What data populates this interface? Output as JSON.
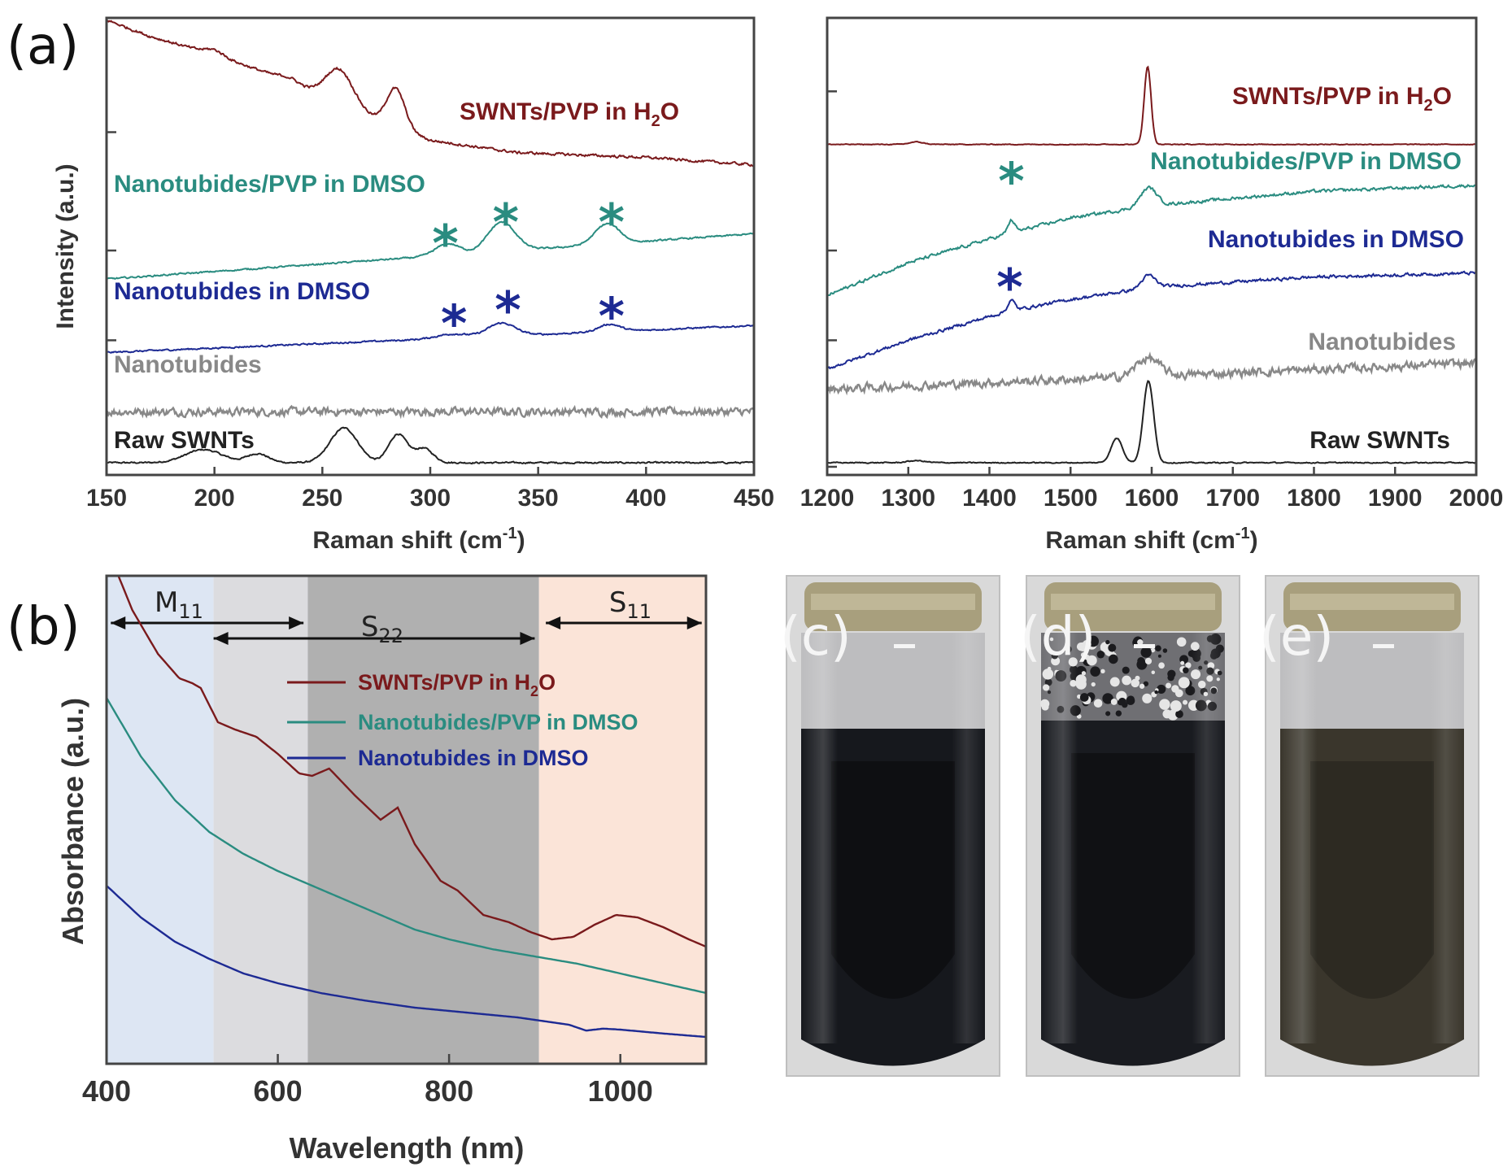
{
  "panel_labels": {
    "a": "(a)",
    "b": "(b)"
  },
  "series_colors": {
    "raw": "#222222",
    "nanotubides": "#888888",
    "nano_dmso": "#1d2a93",
    "nano_pvp_dmso": "#2a8c80",
    "swnt_pvp_h2o": "#7a1a1c"
  },
  "chart_data": [
    {
      "id": "raman_low",
      "type": "line",
      "xlabel": "Raman shift (cm",
      "xlabel_sup": "-1",
      "xlabel_end": ")",
      "ylabel": "Intensity (a.u.)",
      "xlim": [
        150,
        450
      ],
      "ylim": [
        0,
        11.2
      ],
      "xticks": [
        "150",
        "200",
        "250",
        "300",
        "350",
        "400",
        "450"
      ],
      "xtick_values": [
        150,
        200,
        250,
        300,
        350,
        400,
        450
      ],
      "ytick_values": [
        0,
        3.3,
        5.5,
        8.4
      ],
      "series": [
        {
          "key": "raw",
          "name": "Raw SWNTs",
          "offset": 0.3,
          "noise": 0.03,
          "peaks": [
            [
              195,
              12,
              0.32
            ],
            [
              220,
              7,
              0.22
            ],
            [
              260,
              9,
              0.85
            ],
            [
              285,
              6,
              0.7
            ],
            [
              297,
              6,
              0.35
            ]
          ],
          "slope": 0,
          "curve": [],
          "stars": []
        },
        {
          "key": "nanotubides",
          "name": "Nanotubides",
          "offset": 1.55,
          "noise": 0.15,
          "peaks": [],
          "slope": 0,
          "curve": [],
          "stars": []
        },
        {
          "key": "nano_dmso",
          "name": "Nanotubides  in DMSO",
          "offset": 3.0,
          "noise": 0.03,
          "peaks": [
            [
              310,
              10,
              0.1
            ],
            [
              333,
              9,
              0.32
            ],
            [
              383,
              7,
              0.18
            ]
          ],
          "slope": 0.0022,
          "curve": [],
          "stars": [
            {
              "x": 311,
              "y": 3.72,
              "text": "*"
            },
            {
              "x": 336,
              "y": 4.05,
              "text": "*"
            },
            {
              "x": 384,
              "y": 3.9,
              "text": "*"
            }
          ]
        },
        {
          "key": "nano_pvp_dmso",
          "name": "Nanotubides/PVP  in DMSO",
          "offset": 4.8,
          "noise": 0.03,
          "peaks": [
            [
              308,
              8,
              0.28
            ],
            [
              333,
              9,
              0.72
            ],
            [
              382,
              8,
              0.5
            ]
          ],
          "slope": 0.0037,
          "curve": [],
          "stars": [
            {
              "x": 307,
              "y": 5.68,
              "text": "*"
            },
            {
              "x": 335,
              "y": 6.2,
              "text": "*"
            },
            {
              "x": 384,
              "y": 6.2,
              "text": "*"
            }
          ]
        },
        {
          "key": "swnt_pvp_h2o",
          "name": "SWNTs/PVP  in H",
          "name_sub": "2",
          "name_end": "O",
          "offset": 7.5,
          "noise": 0.05,
          "peaks": [
            [
              258,
              9,
              0.85
            ],
            [
              284,
              6,
              0.95
            ],
            [
              200,
              6,
              0.12
            ],
            [
              235,
              6,
              0.1
            ]
          ],
          "slope": 0,
          "curve": [
            [
              150,
              11.15
            ],
            [
              170,
              10.75
            ],
            [
              200,
              10.3
            ],
            [
              230,
              9.75
            ],
            [
              260,
              9.05
            ],
            [
              285,
              8.5
            ],
            [
              300,
              8.2
            ],
            [
              340,
              7.9
            ],
            [
              400,
              7.78
            ],
            [
              450,
              7.6
            ]
          ],
          "stars": []
        }
      ]
    },
    {
      "id": "raman_high",
      "type": "line",
      "xlabel": "Raman shift (cm",
      "xlabel_sup": "-1",
      "xlabel_end": ")",
      "xlim": [
        1200,
        2000
      ],
      "ylim": [
        0,
        11.2
      ],
      "xticks": [
        "1200",
        "1300",
        "1400",
        "1500",
        "1600",
        "1700",
        "1800",
        "1900",
        "2000"
      ],
      "xtick_values": [
        1200,
        1300,
        1400,
        1500,
        1600,
        1700,
        1800,
        1900,
        2000
      ],
      "ytick_values": [
        0.2,
        3.3,
        5.5,
        9.4
      ],
      "series": [
        {
          "key": "raw",
          "name": "Raw SWNTs",
          "offset": 0.3,
          "noise": 0.02,
          "peaks": [
            [
              1557,
              10,
              0.6
            ],
            [
              1596,
              9,
              2.0
            ],
            [
              1310,
              15,
              0.05
            ]
          ],
          "slope": 0,
          "curve": [],
          "stars": []
        },
        {
          "key": "nanotubides",
          "name": "Nanotubides",
          "offset": 2.1,
          "noise": 0.16,
          "peaks": [
            [
              1595,
              20,
              0.45
            ]
          ],
          "slope": 0.0008,
          "curve": [],
          "stars": []
        },
        {
          "key": "nano_dmso",
          "name": "Nanotubides  in DMSO",
          "offset": 2.55,
          "noise": 0.06,
          "peaks": [
            [
              1427,
              6,
              0.25
            ],
            [
              1596,
              12,
              0.3
            ]
          ],
          "slope": 0,
          "curve": [
            [
              1200,
              2.6
            ],
            [
              1300,
              3.3
            ],
            [
              1420,
              4.0
            ],
            [
              1500,
              4.3
            ],
            [
              1600,
              4.6
            ],
            [
              1800,
              4.85
            ],
            [
              2000,
              4.95
            ]
          ],
          "stars": [
            {
              "x": 1425,
              "y": 4.6,
              "text": "*"
            }
          ]
        },
        {
          "key": "nano_pvp_dmso",
          "name": "Nanotubides/PVP  in DMSO",
          "offset": 4.4,
          "noise": 0.06,
          "peaks": [
            [
              1427,
              6,
              0.3
            ],
            [
              1596,
              14,
              0.45
            ]
          ],
          "slope": 0,
          "curve": [
            [
              1200,
              4.4
            ],
            [
              1300,
              5.2
            ],
            [
              1420,
              5.9
            ],
            [
              1500,
              6.3
            ],
            [
              1600,
              6.6
            ],
            [
              1800,
              6.95
            ],
            [
              2000,
              7.1
            ]
          ],
          "stars": [
            {
              "x": 1427,
              "y": 7.2,
              "text": "*"
            }
          ]
        },
        {
          "key": "swnt_pvp_h2o",
          "name": "SWNTs/PVP  in H",
          "name_sub": "2",
          "name_end": "O",
          "offset": 8.1,
          "noise": 0.015,
          "peaks": [
            [
              1595,
              6,
              1.9
            ],
            [
              1310,
              12,
              0.06
            ]
          ],
          "slope": 0,
          "curve": [],
          "stars": []
        }
      ]
    },
    {
      "id": "absorbance",
      "type": "line",
      "xlabel": "Wavelength (nm)",
      "ylabel": "Absorbance (a.u.)",
      "xlim": [
        400,
        1100
      ],
      "ylim": [
        0,
        10
      ],
      "xticks": [
        "400",
        "600",
        "800",
        "1000"
      ],
      "xtick_values": [
        400,
        600,
        800,
        1000
      ],
      "regions": [
        {
          "name": "M",
          "sub": "11",
          "from": 400,
          "to": 525,
          "color": "#dde6f3"
        },
        {
          "name": "",
          "sub": "",
          "from": 525,
          "to": 635,
          "color": "#dcdcdf"
        },
        {
          "name": "S",
          "sub": "22",
          "from": 635,
          "to": 905,
          "color": "#b0b0b0"
        },
        {
          "name": "S",
          "sub": "11",
          "from": 905,
          "to": 1100,
          "color": "#fbe4d8"
        }
      ],
      "arrows": [
        {
          "label": "M",
          "sub": "11",
          "from": 405,
          "to": 630
        },
        {
          "label": "S",
          "sub": "22",
          "from": 525,
          "to": 900
        },
        {
          "label": "S",
          "sub": "11",
          "from": 913,
          "to": 1095
        }
      ],
      "series": [
        {
          "key": "swnt_pvp_h2o",
          "name": "SWNTs/PVP  in H",
          "name_sub": "2",
          "name_end": "O",
          "points": [
            [
              400,
              10.6
            ],
            [
              430,
              9.3
            ],
            [
              460,
              8.4
            ],
            [
              485,
              7.9
            ],
            [
              500,
              7.8
            ],
            [
              510,
              7.7
            ],
            [
              530,
              7.0
            ],
            [
              550,
              6.85
            ],
            [
              575,
              6.7
            ],
            [
              600,
              6.35
            ],
            [
              625,
              5.95
            ],
            [
              640,
              5.9
            ],
            [
              660,
              6.05
            ],
            [
              690,
              5.5
            ],
            [
              720,
              5.0
            ],
            [
              740,
              5.25
            ],
            [
              760,
              4.5
            ],
            [
              790,
              3.75
            ],
            [
              810,
              3.55
            ],
            [
              840,
              3.05
            ],
            [
              870,
              2.9
            ],
            [
              895,
              2.7
            ],
            [
              920,
              2.55
            ],
            [
              945,
              2.6
            ],
            [
              970,
              2.85
            ],
            [
              995,
              3.05
            ],
            [
              1020,
              3.0
            ],
            [
              1050,
              2.8
            ],
            [
              1080,
              2.55
            ],
            [
              1100,
              2.4
            ]
          ]
        },
        {
          "key": "nano_pvp_dmso",
          "name": "Nanotubides/PVP in DMSO",
          "points": [
            [
              400,
              7.5
            ],
            [
              440,
              6.3
            ],
            [
              480,
              5.4
            ],
            [
              520,
              4.75
            ],
            [
              560,
              4.3
            ],
            [
              600,
              3.95
            ],
            [
              640,
              3.65
            ],
            [
              680,
              3.35
            ],
            [
              720,
              3.05
            ],
            [
              760,
              2.75
            ],
            [
              800,
              2.55
            ],
            [
              850,
              2.35
            ],
            [
              900,
              2.2
            ],
            [
              950,
              2.05
            ],
            [
              1000,
              1.85
            ],
            [
              1050,
              1.65
            ],
            [
              1100,
              1.45
            ]
          ]
        },
        {
          "key": "nano_dmso",
          "name": "Nanotubides  in DMSO",
          "points": [
            [
              400,
              3.65
            ],
            [
              440,
              3.0
            ],
            [
              480,
              2.5
            ],
            [
              520,
              2.15
            ],
            [
              560,
              1.85
            ],
            [
              600,
              1.65
            ],
            [
              650,
              1.45
            ],
            [
              700,
              1.3
            ],
            [
              760,
              1.15
            ],
            [
              820,
              1.05
            ],
            [
              880,
              0.95
            ],
            [
              940,
              0.8
            ],
            [
              960,
              0.68
            ],
            [
              980,
              0.72
            ],
            [
              1000,
              0.7
            ],
            [
              1050,
              0.62
            ],
            [
              1100,
              0.55
            ]
          ]
        }
      ]
    }
  ],
  "photos": [
    {
      "label": "(c)",
      "tint": "#0e0f12",
      "liquid": "#16181d",
      "foam": false
    },
    {
      "label": "(d)",
      "tint": "#101114",
      "liquid": "#191b20",
      "foam": true
    },
    {
      "label": "(e)",
      "tint": "#2d2a22",
      "liquid": "#3a362c",
      "foam": false
    }
  ]
}
